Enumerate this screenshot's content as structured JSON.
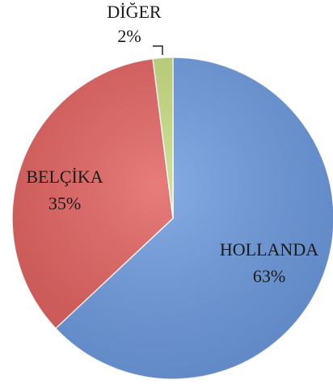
{
  "chart_data": {
    "type": "pie",
    "categories": [
      "HOLLANDA",
      "BELÇİKA",
      "DİĞER"
    ],
    "values": [
      63,
      35,
      2
    ],
    "value_labels": [
      "63%",
      "35%",
      "2%"
    ],
    "colors": [
      "#6d9be0",
      "#e2605e",
      "#c6dc7e"
    ]
  }
}
